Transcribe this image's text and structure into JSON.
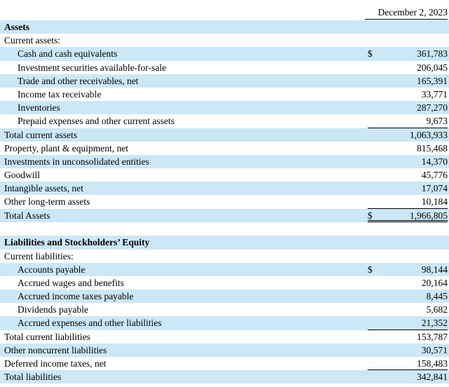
{
  "header": {
    "date": "December 2, 2023"
  },
  "rows": [
    {
      "label": "Assets",
      "style": "bold",
      "shade": true
    },
    {
      "label": "Current assets:",
      "style": "plain",
      "shade": false
    },
    {
      "label": "Cash and cash equivalents",
      "style": "ind",
      "shade": true,
      "currency": "$",
      "value": "361,783"
    },
    {
      "label": "Investment securities available-for-sale",
      "style": "ind",
      "shade": false,
      "value": "206,045"
    },
    {
      "label": "Trade and other receivables, net",
      "style": "ind",
      "shade": true,
      "value": "165,391"
    },
    {
      "label": "Income tax receivable",
      "style": "ind",
      "shade": false,
      "value": "33,771"
    },
    {
      "label": "Inventories",
      "style": "ind",
      "shade": true,
      "value": "287,270"
    },
    {
      "label": "Prepaid expenses and other current assets",
      "style": "ind",
      "shade": false,
      "value": "9,673",
      "underline": "single"
    },
    {
      "label": "Total current assets",
      "style": "plain",
      "shade": true,
      "value": "1,063,933"
    },
    {
      "label": "Property, plant & equipment, net",
      "style": "plain",
      "shade": false,
      "value": "815,468"
    },
    {
      "label": "Investments in unconsolidated entities",
      "style": "plain",
      "shade": true,
      "value": "14,370"
    },
    {
      "label": "Goodwill",
      "style": "plain",
      "shade": false,
      "value": "45,776"
    },
    {
      "label": "Intangible assets, net",
      "style": "plain",
      "shade": true,
      "value": "17,074"
    },
    {
      "label": "Other long-term assets",
      "style": "plain",
      "shade": false,
      "value": "10,184",
      "underline": "single"
    },
    {
      "label": "Total Assets",
      "style": "plain",
      "shade": true,
      "currency": "$",
      "value": "1,966,805",
      "underline": "double"
    },
    {
      "label": "",
      "style": "blank",
      "shade": false
    },
    {
      "label": "Liabilities and Stockholders’ Equity",
      "style": "bold",
      "shade": true
    },
    {
      "label": "Current liabilities:",
      "style": "plain",
      "shade": false
    },
    {
      "label": "Accounts payable",
      "style": "ind",
      "shade": true,
      "currency": "$",
      "value": "98,144"
    },
    {
      "label": "Accrued wages and benefits",
      "style": "ind",
      "shade": false,
      "value": "20,164"
    },
    {
      "label": "Accrued income taxes payable",
      "style": "ind",
      "shade": true,
      "value": "8,445"
    },
    {
      "label": "Dividends payable",
      "style": "ind",
      "shade": false,
      "value": "5,682"
    },
    {
      "label": "Accrued expenses and other liabilities",
      "style": "ind",
      "shade": true,
      "value": "21,352",
      "underline": "single"
    },
    {
      "label": "Total current liabilities",
      "style": "plain",
      "shade": false,
      "value": "153,787"
    },
    {
      "label": "Other noncurrent liabilities",
      "style": "plain",
      "shade": true,
      "value": "30,571"
    },
    {
      "label": "Deferred income taxes, net",
      "style": "plain",
      "shade": false,
      "value": "158,483",
      "underline": "single"
    },
    {
      "label": "Total liabilities",
      "style": "plain",
      "shade": true,
      "value": "342,841"
    }
  ]
}
